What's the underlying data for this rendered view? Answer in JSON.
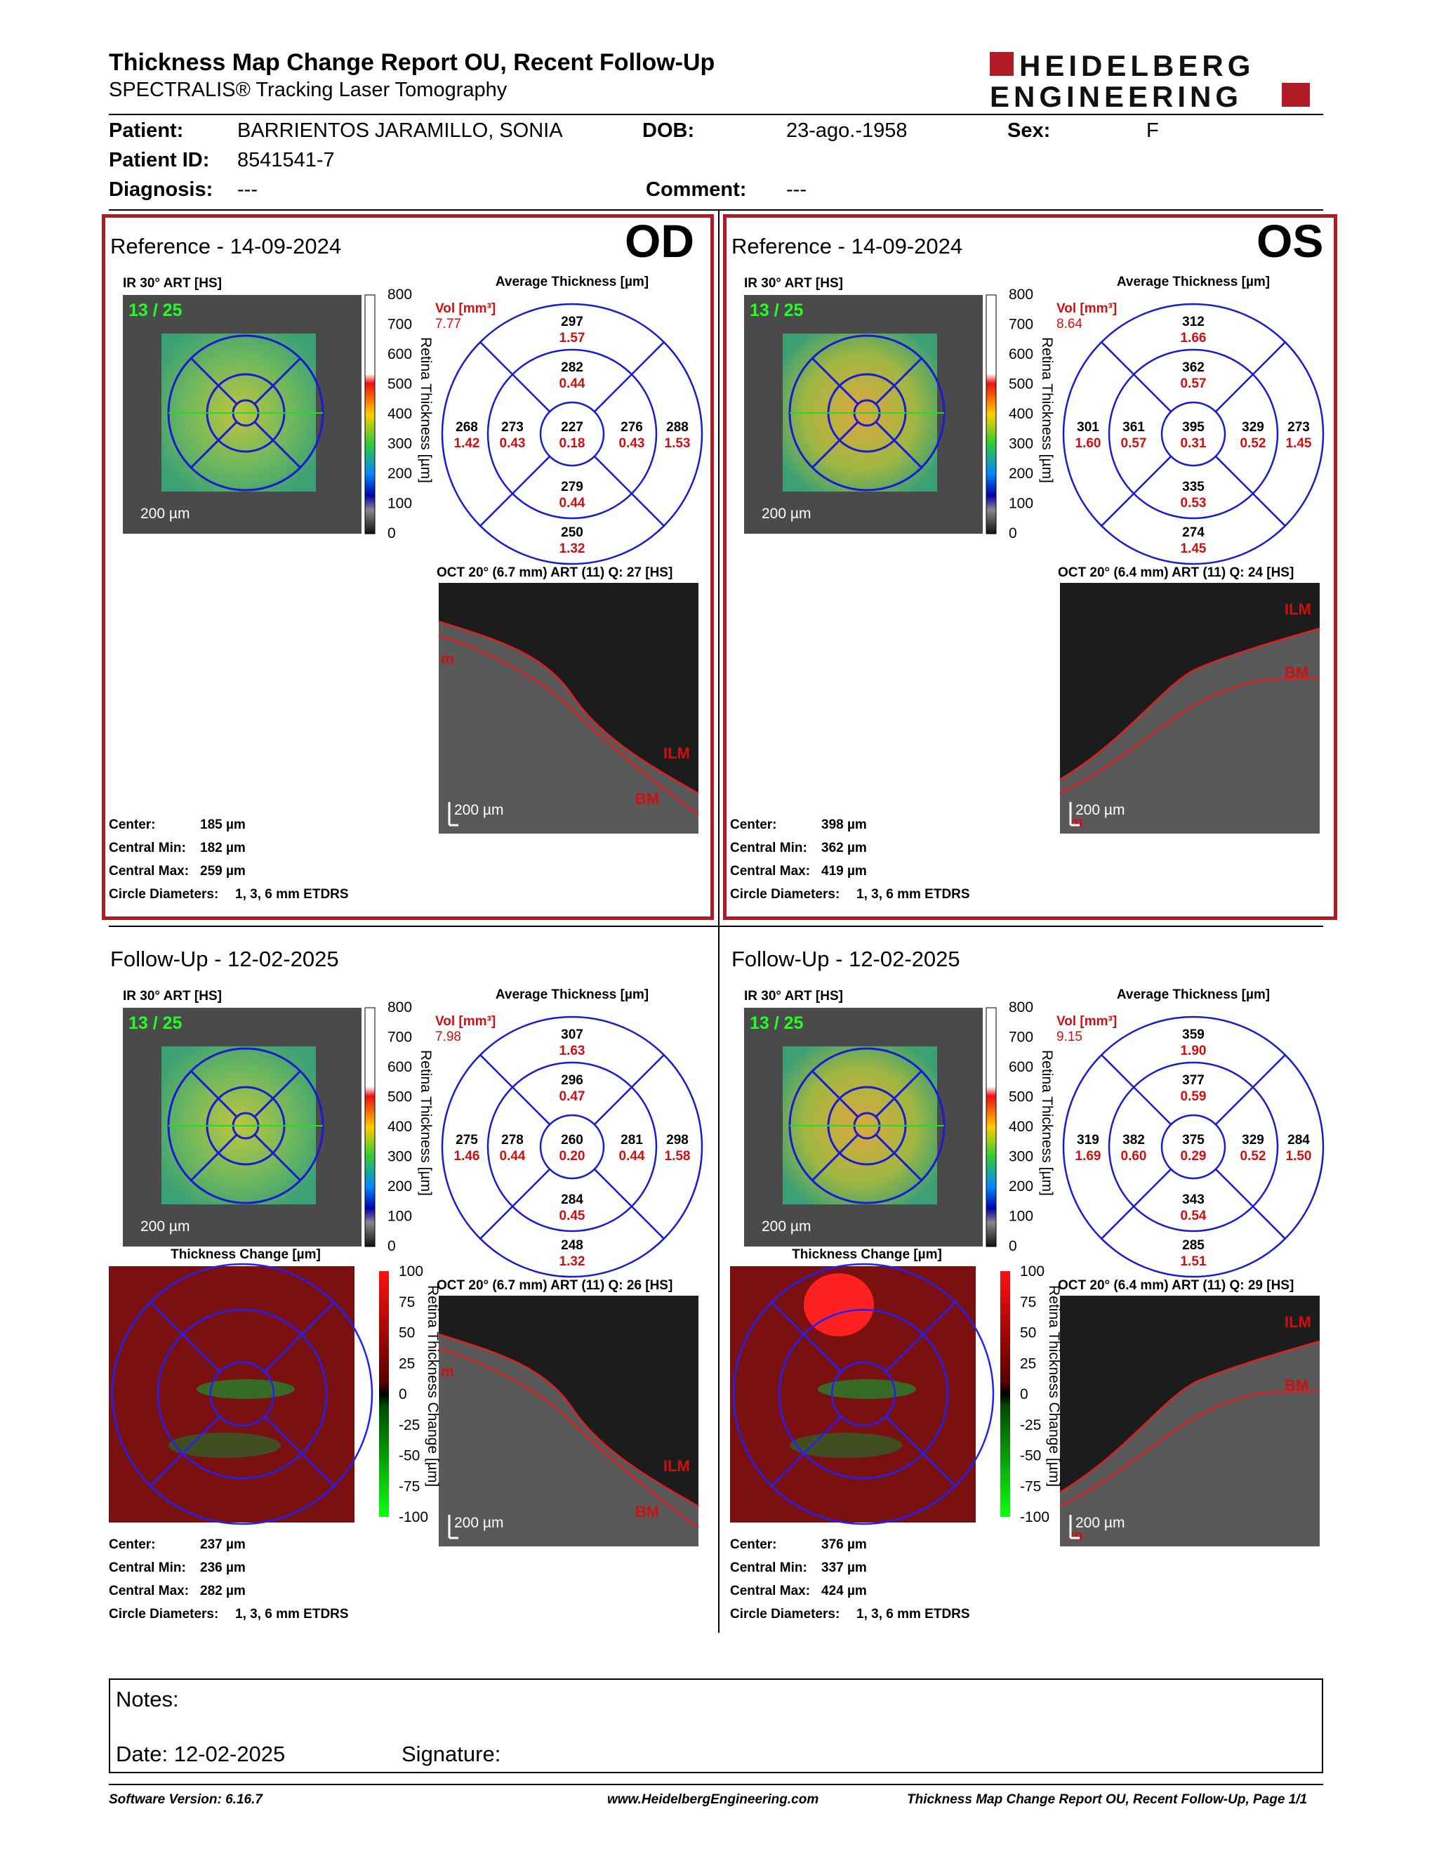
{
  "header": {
    "title": "Thickness Map Change Report OU, Recent Follow-Up",
    "subtitle": "SPECTRALIS® Tracking Laser Tomography",
    "logo_line1": "HEIDELBERG",
    "logo_line2": "ENGINEERING",
    "brand_color": "#b01c26"
  },
  "patient": {
    "patient_label": "Patient:",
    "patient_value": "BARRIENTOS JARAMILLO, SONIA",
    "dob_label": "DOB:",
    "dob_value": "23-ago.-1958",
    "sex_label": "Sex:",
    "sex_value": "F",
    "id_label": "Patient ID:",
    "id_value": "8541541-7",
    "diagnosis_label": "Diagnosis:",
    "diagnosis_value": "---",
    "comment_label": "Comment:",
    "comment_value": "---"
  },
  "common": {
    "ir_label": "IR 30° ART [HS]",
    "frame_count": "13 / 25",
    "scale_bar": "200 µm",
    "avg_title": "Average Thickness [µm]",
    "vol_label": "Vol [mm³]",
    "colorbar_ticks": [
      "800",
      "700",
      "600",
      "500",
      "400",
      "300",
      "200",
      "100",
      "0"
    ],
    "colorbar_title": "Retina Thickness [µm]",
    "change_title": "Thickness Change [µm]",
    "change_ticks": [
      "100",
      "75",
      "50",
      "25",
      "0",
      "-25",
      "-50",
      "-75",
      "-100"
    ],
    "change_bar_title": "Retina Thickness Change [µm]",
    "ilm": "ILM",
    "bm": "BM",
    "m_mark": "m",
    "meta_labels": {
      "center": "Center:",
      "cmin": "Central Min:",
      "cmax": "Central Max:",
      "circ": "Circle Diameters:"
    },
    "circ_value": "1, 3, 6 mm ETDRS"
  },
  "od_ref": {
    "eye": "OD",
    "title": "Reference - 14-09-2024",
    "vol": "7.77",
    "oct_label": "OCT 20° (6.7 mm) ART (11) Q: 27 [HS]",
    "etdrs": {
      "outer_top": [
        "297",
        "1.57"
      ],
      "inner_top": [
        "282",
        "0.44"
      ],
      "outer_left": [
        "268",
        "1.42"
      ],
      "inner_left": [
        "273",
        "0.43"
      ],
      "center": [
        "227",
        "0.18"
      ],
      "inner_right": [
        "276",
        "0.43"
      ],
      "outer_right": [
        "288",
        "1.53"
      ],
      "inner_bottom": [
        "279",
        "0.44"
      ],
      "outer_bottom": [
        "250",
        "1.32"
      ]
    },
    "center": "185 µm",
    "cmin": "182 µm",
    "cmax": "259 µm"
  },
  "os_ref": {
    "eye": "OS",
    "title": "Reference - 14-09-2024",
    "vol": "8.64",
    "oct_label": "OCT 20° (6.4 mm) ART (11) Q: 24 [HS]",
    "etdrs": {
      "outer_top": [
        "312",
        "1.66"
      ],
      "inner_top": [
        "362",
        "0.57"
      ],
      "outer_left": [
        "301",
        "1.60"
      ],
      "inner_left": [
        "361",
        "0.57"
      ],
      "center": [
        "395",
        "0.31"
      ],
      "inner_right": [
        "329",
        "0.52"
      ],
      "outer_right": [
        "273",
        "1.45"
      ],
      "inner_bottom": [
        "335",
        "0.53"
      ],
      "outer_bottom": [
        "274",
        "1.45"
      ]
    },
    "center": "398 µm",
    "cmin": "362 µm",
    "cmax": "419 µm"
  },
  "od_fu": {
    "title": "Follow-Up - 12-02-2025",
    "vol": "7.98",
    "oct_label": "OCT 20° (6.7 mm) ART (11) Q: 26 [HS]",
    "etdrs": {
      "outer_top": [
        "307",
        "1.63"
      ],
      "inner_top": [
        "296",
        "0.47"
      ],
      "outer_left": [
        "275",
        "1.46"
      ],
      "inner_left": [
        "278",
        "0.44"
      ],
      "center": [
        "260",
        "0.20"
      ],
      "inner_right": [
        "281",
        "0.44"
      ],
      "outer_right": [
        "298",
        "1.58"
      ],
      "inner_bottom": [
        "284",
        "0.45"
      ],
      "outer_bottom": [
        "248",
        "1.32"
      ]
    },
    "center": "237 µm",
    "cmin": "236 µm",
    "cmax": "282 µm"
  },
  "os_fu": {
    "title": "Follow-Up - 12-02-2025",
    "vol": "9.15",
    "oct_label": "OCT 20° (6.4 mm) ART (11) Q: 29 [HS]",
    "etdrs": {
      "outer_top": [
        "359",
        "1.90"
      ],
      "inner_top": [
        "377",
        "0.59"
      ],
      "outer_left": [
        "319",
        "1.69"
      ],
      "inner_left": [
        "382",
        "0.60"
      ],
      "center": [
        "375",
        "0.29"
      ],
      "inner_right": [
        "329",
        "0.52"
      ],
      "outer_right": [
        "284",
        "1.50"
      ],
      "inner_bottom": [
        "343",
        "0.54"
      ],
      "outer_bottom": [
        "285",
        "1.51"
      ]
    },
    "center": "376 µm",
    "cmin": "337 µm",
    "cmax": "424 µm"
  },
  "notes": {
    "notes_label": "Notes:",
    "date_label": "Date: 12-02-2025",
    "signature_label": "Signature:"
  },
  "footer": {
    "software": "Software Version: 6.16.7",
    "website": "www.HeidelbergEngineering.com",
    "page": "Thickness Map Change Report OU, Recent Follow-Up, Page 1/1"
  }
}
